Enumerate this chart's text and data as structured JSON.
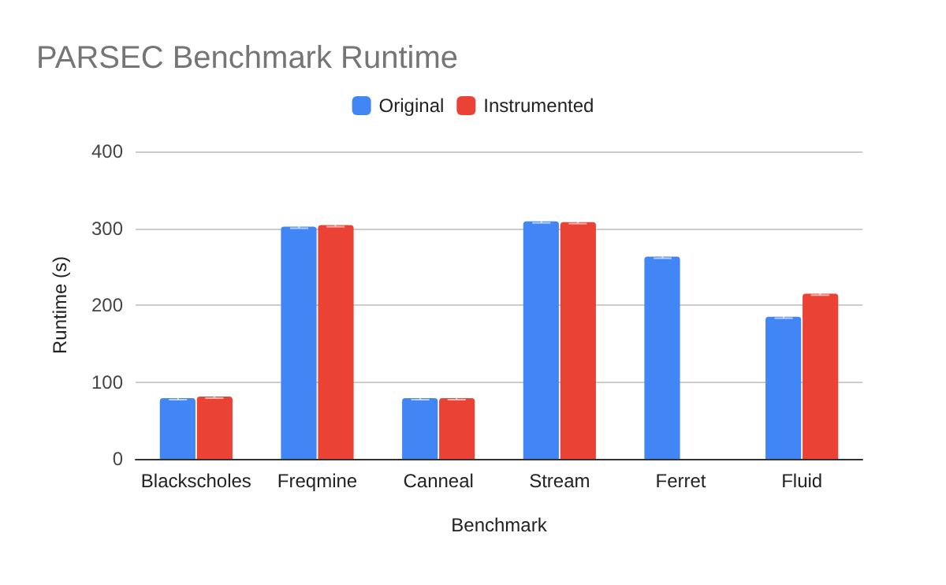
{
  "chart_data": {
    "type": "bar",
    "title": "PARSEC Benchmark Runtime",
    "xlabel": "Benchmark",
    "ylabel": "Runtime (s)",
    "categories": [
      "Blackscholes",
      "Freqmine",
      "Canneal",
      "Stream",
      "Ferret",
      "Fluid"
    ],
    "series": [
      {
        "name": "Original",
        "color": "#4285f4",
        "values": [
          79,
          302,
          79,
          309,
          263,
          185
        ],
        "errors": [
          2,
          2,
          2,
          2,
          2,
          2
        ]
      },
      {
        "name": "Instrumented",
        "color": "#ea4335",
        "values": [
          81,
          304,
          79,
          308,
          null,
          215
        ],
        "errors": [
          2,
          2,
          2,
          2,
          null,
          2
        ]
      }
    ],
    "ylim": [
      0,
      400
    ],
    "yticks": [
      0,
      100,
      200,
      300,
      400
    ],
    "grid": "y",
    "legend": "top"
  }
}
